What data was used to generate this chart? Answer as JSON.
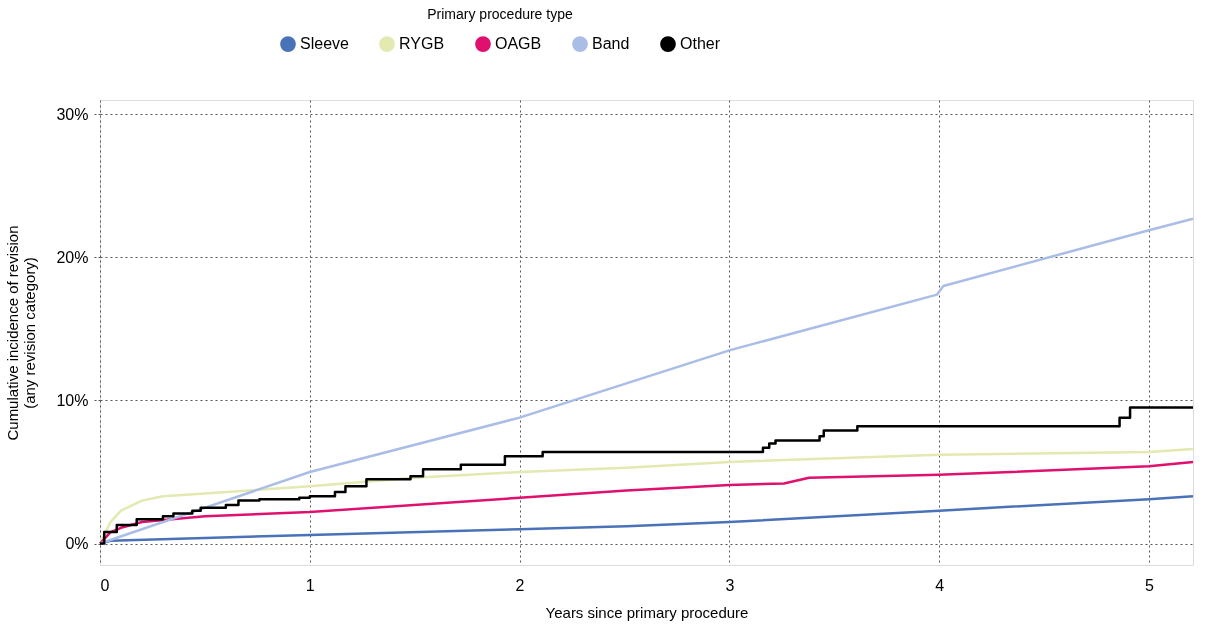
{
  "chart_data": {
    "type": "line",
    "xlabel": "Years since primary procedure",
    "ylabel": "Cumulative incidence of revision\n(any revision category)",
    "legend_title": "Primary procedure type",
    "xlim": [
      0,
      5.21
    ],
    "xticks": [
      0,
      1,
      2,
      3,
      4,
      5
    ],
    "ylim": [
      -1.5,
      31
    ],
    "yticks": [
      {
        "value": 0,
        "label": "0%"
      },
      {
        "value": 10,
        "label": "10%"
      },
      {
        "value": 20,
        "label": "20%"
      },
      {
        "value": 30,
        "label": "30%"
      }
    ],
    "grid": true,
    "legend": "top",
    "marker": "none",
    "line_style": "solid",
    "series": [
      {
        "name": "Sleeve",
        "color": "#4a72b8",
        "x": [
          0,
          0.05,
          1,
          2,
          2.51,
          3,
          4,
          5,
          5.21
        ],
        "values": [
          0,
          0.2,
          0.6,
          1.0,
          1.2,
          1.5,
          2.3,
          3.1,
          3.3
        ]
      },
      {
        "name": "RYGB",
        "color": "#e3e9b0",
        "x": [
          0,
          0.05,
          0.1,
          0.2,
          0.3,
          0.5,
          1,
          1.5,
          2,
          2.51,
          3,
          4,
          5,
          5.21
        ],
        "values": [
          0,
          1.5,
          2.3,
          3.0,
          3.3,
          3.5,
          4.0,
          4.6,
          5.0,
          5.3,
          5.7,
          6.2,
          6.4,
          6.6
        ]
      },
      {
        "name": "OAGB",
        "color": "#e0106e",
        "x": [
          0,
          0.05,
          0.1,
          0.2,
          0.5,
          1,
          2,
          2.51,
          3,
          3.26,
          3.38,
          4,
          5,
          5.21
        ],
        "values": [
          0,
          0.8,
          1.1,
          1.5,
          1.9,
          2.2,
          3.2,
          3.7,
          4.1,
          4.2,
          4.6,
          4.8,
          5.4,
          5.7
        ]
      },
      {
        "name": "Band",
        "color": "#a9bde6",
        "x": [
          0,
          1,
          2,
          3,
          3.99,
          4.02,
          5,
          5.21
        ],
        "values": [
          0,
          5.0,
          8.8,
          13.5,
          17.4,
          18.0,
          21.9,
          22.7
        ]
      },
      {
        "name": "Other",
        "color": "#000000",
        "type": "step",
        "x": [
          0,
          0.02,
          0.08,
          0.175,
          0.3,
          0.35,
          0.44,
          0.48,
          0.6,
          0.66,
          0.76,
          0.95,
          1.0,
          1.12,
          1.17,
          1.27,
          1.48,
          1.54,
          1.72,
          1.93,
          2.11,
          3.16,
          3.19,
          3.22,
          3.43,
          3.45,
          3.61,
          4.86,
          4.91,
          5.21
        ],
        "values": [
          0,
          0.8,
          1.3,
          1.7,
          1.9,
          2.1,
          2.3,
          2.5,
          2.7,
          3.0,
          3.1,
          3.2,
          3.3,
          3.6,
          4.0,
          4.5,
          4.7,
          5.2,
          5.5,
          6.1,
          6.4,
          6.7,
          7.0,
          7.2,
          7.5,
          7.9,
          8.2,
          8.8,
          9.5,
          9.5
        ]
      }
    ]
  }
}
